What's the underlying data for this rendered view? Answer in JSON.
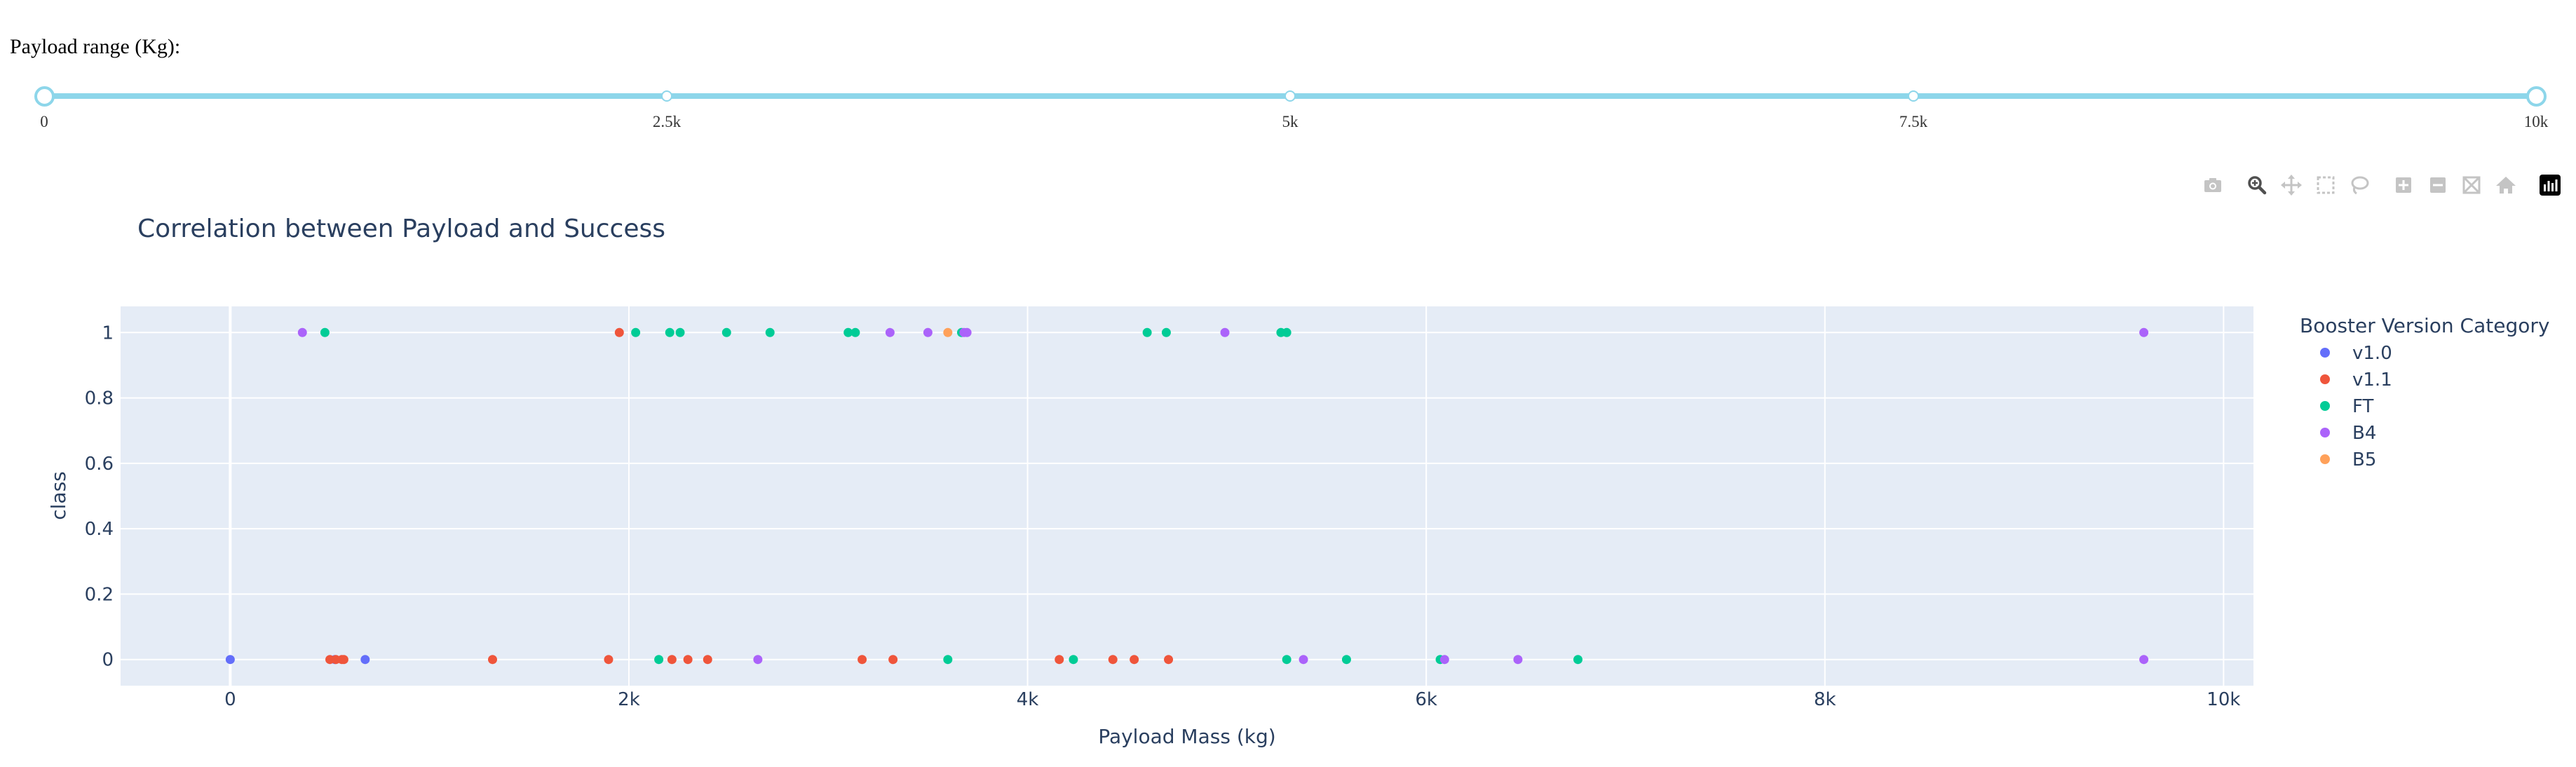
{
  "slider": {
    "label": "Payload range (Kg):",
    "min": 0,
    "max": 10000,
    "selected_range": [
      0,
      10000
    ],
    "marks": [
      {
        "value": 0,
        "label": "0"
      },
      {
        "value": 2500,
        "label": "2.5k"
      },
      {
        "value": 5000,
        "label": "5k"
      },
      {
        "value": 7500,
        "label": "7.5k"
      },
      {
        "value": 10000,
        "label": "10k"
      }
    ]
  },
  "modebar": {
    "buttons": [
      {
        "name": "download-plot-button",
        "icon": "camera-icon"
      },
      {
        "name": "zoom-button",
        "icon": "zoom-icon"
      },
      {
        "name": "pan-button",
        "icon": "pan-icon"
      },
      {
        "name": "box-select-button",
        "icon": "box-select-icon"
      },
      {
        "name": "lasso-select-button",
        "icon": "lasso-icon"
      },
      {
        "name": "zoom-in-button",
        "icon": "plus-icon"
      },
      {
        "name": "zoom-out-button",
        "icon": "minus-icon"
      },
      {
        "name": "autoscale-button",
        "icon": "autoscale-icon"
      },
      {
        "name": "reset-axes-button",
        "icon": "home-icon"
      },
      {
        "name": "plotly-logo-button",
        "icon": "plotly-logo-icon"
      }
    ]
  },
  "chart_data": {
    "type": "scatter",
    "title": "Correlation between Payload and Success",
    "xlabel": "Payload Mass (kg)",
    "ylabel": "class",
    "xlim": [
      -550,
      10150
    ],
    "ylim": [
      -0.08,
      1.08
    ],
    "xticks": [
      {
        "value": 0,
        "label": "0"
      },
      {
        "value": 2000,
        "label": "2k"
      },
      {
        "value": 4000,
        "label": "4k"
      },
      {
        "value": 6000,
        "label": "6k"
      },
      {
        "value": 8000,
        "label": "8k"
      },
      {
        "value": 10000,
        "label": "10k"
      }
    ],
    "yticks": [
      {
        "value": 0,
        "label": "0"
      },
      {
        "value": 0.2,
        "label": "0.2"
      },
      {
        "value": 0.4,
        "label": "0.4"
      },
      {
        "value": 0.6,
        "label": "0.6"
      },
      {
        "value": 0.8,
        "label": "0.8"
      },
      {
        "value": 1,
        "label": "1"
      }
    ],
    "grid": true,
    "legend_title": "Booster Version Category",
    "legend_position": "right",
    "background": "#e5ecf6",
    "series": [
      {
        "name": "v1.0",
        "color": "#636efa",
        "points": [
          [
            0,
            0
          ],
          [
            525,
            0
          ],
          [
            677,
            0
          ]
        ]
      },
      {
        "name": "v1.1",
        "color": "#ef553b",
        "points": [
          [
            500,
            0
          ],
          [
            530,
            0
          ],
          [
            560,
            0
          ],
          [
            570,
            0
          ],
          [
            1316,
            0
          ],
          [
            1898,
            0
          ],
          [
            1952,
            1
          ],
          [
            2216,
            0
          ],
          [
            2296,
            0
          ],
          [
            2395,
            0
          ],
          [
            3170,
            0
          ],
          [
            3325,
            0
          ],
          [
            4159,
            0
          ],
          [
            4428,
            0
          ],
          [
            4535,
            0
          ],
          [
            4707,
            0
          ]
        ]
      },
      {
        "name": "FT",
        "color": "#00cc96",
        "points": [
          [
            475,
            1
          ],
          [
            2034,
            1
          ],
          [
            2205,
            1
          ],
          [
            2257,
            1
          ],
          [
            2490,
            1
          ],
          [
            2708,
            1
          ],
          [
            3100,
            1
          ],
          [
            3136,
            1
          ],
          [
            3669,
            1
          ],
          [
            4600,
            1
          ],
          [
            4696,
            1
          ],
          [
            5271,
            1
          ],
          [
            5300,
            1
          ],
          [
            2150,
            0
          ],
          [
            3600,
            0
          ],
          [
            4230,
            0
          ],
          [
            5300,
            0
          ],
          [
            5600,
            0
          ],
          [
            6070,
            0
          ],
          [
            6761,
            0
          ]
        ]
      },
      {
        "name": "B4",
        "color": "#ab63fa",
        "points": [
          [
            362,
            1
          ],
          [
            3310,
            1
          ],
          [
            3500,
            1
          ],
          [
            3681,
            1
          ],
          [
            3696,
            1
          ],
          [
            4990,
            1
          ],
          [
            9600,
            1
          ],
          [
            2647,
            0
          ],
          [
            5384,
            0
          ],
          [
            6092,
            0
          ],
          [
            6460,
            0
          ],
          [
            9600,
            0
          ]
        ]
      },
      {
        "name": "B5",
        "color": "#ffa15a",
        "points": [
          [
            3600,
            1
          ]
        ]
      }
    ]
  }
}
